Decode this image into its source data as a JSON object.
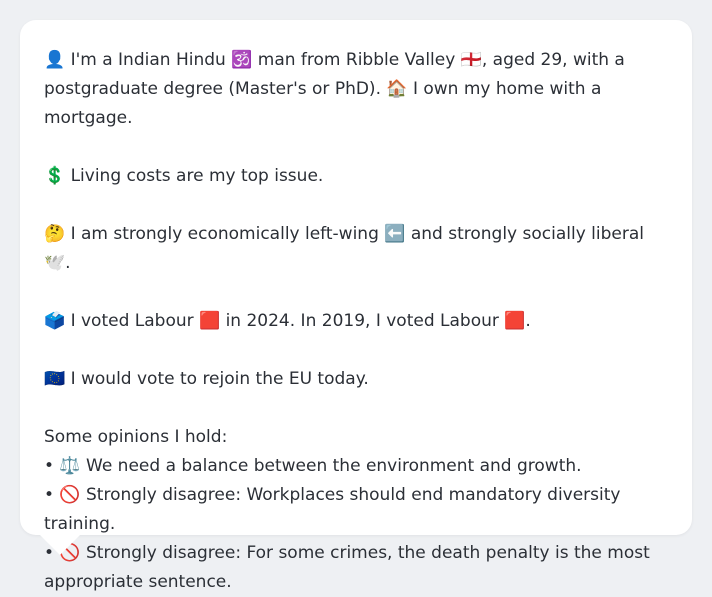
{
  "profile": {
    "intro": "👤 I'm a Indian Hindu 🕉️ man from Ribble Valley 🏴󠁧󠁢󠁥󠁮󠁧󠁿, aged 29, with a postgraduate degree (Master's or PhD). 🏠 I own my home with a mortgage.",
    "issue": "💲 Living costs are my top issue.",
    "ideology": "🤔 I am strongly economically left-wing ⬅️ and strongly socially liberal 🕊️.",
    "votes": "🗳️ I voted Labour 🟥 in 2024. In 2019, I voted Labour 🟥.",
    "eu": "🇪🇺 I would vote to rejoin the EU today.",
    "opinions_heading": "Some opinions I hold:",
    "opinions": [
      "• ⚖️ We need a balance between the environment and growth.",
      "• 🚫 Strongly disagree: Workplaces should end mandatory diversity training.",
      "• 🚫 Strongly disagree: For some crimes, the death penalty is the most appropriate sentence."
    ]
  },
  "colors": {
    "background": "#eef0f3",
    "bubble": "#ffffff",
    "text": "#2b2f36"
  }
}
